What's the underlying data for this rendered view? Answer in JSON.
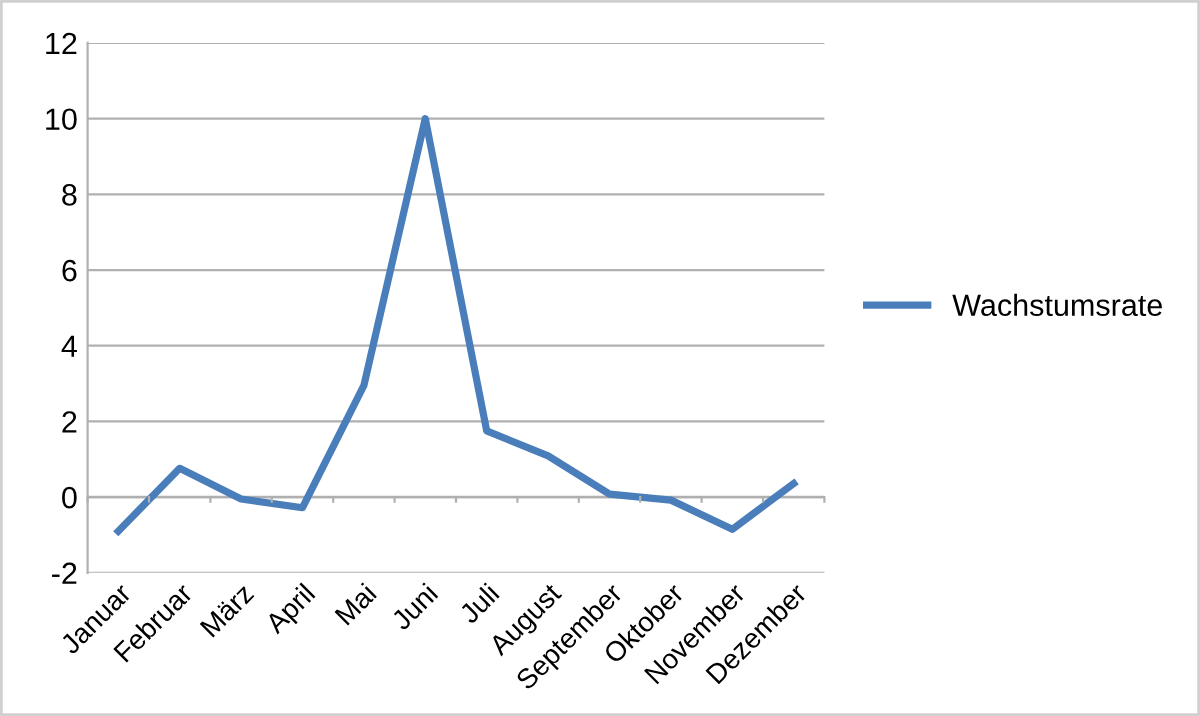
{
  "chart_data": {
    "type": "line",
    "categories": [
      "Januar",
      "Februar",
      "März",
      "April",
      "Mai",
      "Juni",
      "Juli",
      "August",
      "September",
      "Oktober",
      "November",
      "Dezember"
    ],
    "series": [
      {
        "name": "Wachstumsrate",
        "color": "#4a7ebb",
        "values": [
          -0.9,
          0.76,
          -0.05,
          -0.28,
          2.95,
          10,
          1.75,
          1.09,
          0.08,
          -0.08,
          -0.85,
          0.36
        ]
      }
    ],
    "ylim": [
      -2,
      12
    ],
    "yticks": [
      -2,
      0,
      2,
      4,
      6,
      8,
      10,
      12
    ],
    "grid": "y",
    "legend": "right",
    "marker": "none",
    "line_style": "solid"
  }
}
